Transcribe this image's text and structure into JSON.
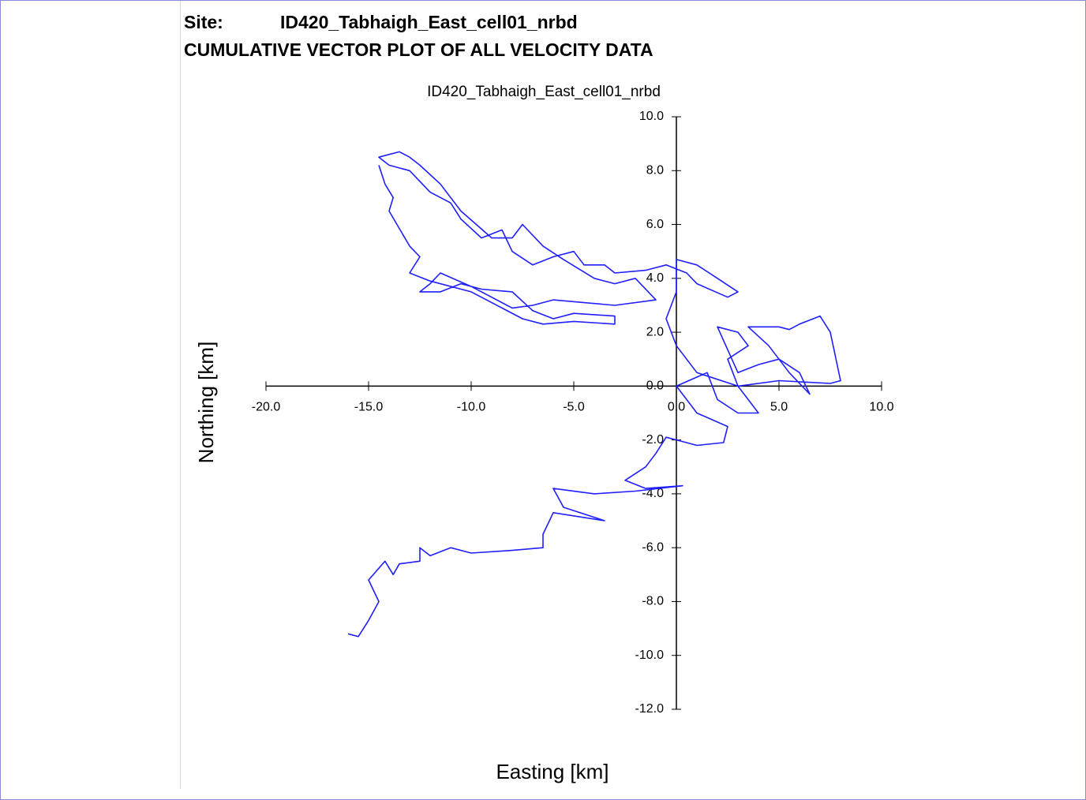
{
  "header": {
    "site_label": "Site:",
    "site_name": "ID420_Tabhaigh_East_cell01_nrbd",
    "subtitle": "CUMULATIVE VECTOR PLOT OF ALL VELOCITY DATA"
  },
  "chart_data": {
    "type": "line",
    "title": "ID420_Tabhaigh_East_cell01_nrbd",
    "x_label": "Easting [km]",
    "y_label": "Northing [km]",
    "xlim": [
      -20,
      10
    ],
    "ylim": [
      -12,
      10
    ],
    "xticks": [
      {
        "value": -20,
        "label": "-20.0"
      },
      {
        "value": -15,
        "label": "-15.0"
      },
      {
        "value": -10,
        "label": "-10.0"
      },
      {
        "value": -5,
        "label": "-5.0"
      },
      {
        "value": 0,
        "label": "0.0"
      },
      {
        "value": 5,
        "label": "5.0"
      },
      {
        "value": 10,
        "label": "10.0"
      }
    ],
    "yticks": [
      {
        "value": 10,
        "label": "10.0"
      },
      {
        "value": 8,
        "label": "8.0"
      },
      {
        "value": 6,
        "label": "6.0"
      },
      {
        "value": 4,
        "label": "4.0"
      },
      {
        "value": 2,
        "label": "2.0"
      },
      {
        "value": 0,
        "label": "0.0"
      },
      {
        "value": -2,
        "label": "-2.0"
      },
      {
        "value": -4,
        "label": "-4.0"
      },
      {
        "value": -6,
        "label": "-6.0"
      },
      {
        "value": -8,
        "label": "-8.0"
      },
      {
        "value": -10,
        "label": "-10.0"
      },
      {
        "value": -12,
        "label": "-12.0"
      }
    ],
    "x": [
      -16,
      -15.5,
      -15,
      -14.5,
      -15,
      -14.2,
      -13.8,
      -13.5,
      -12.5,
      -12.5,
      -12,
      -11,
      -10,
      -8,
      -6.5,
      -6.5,
      -6,
      -3.5,
      -5.5,
      -6,
      -4,
      -2,
      0.3,
      -1.5,
      -2.5,
      -1.5,
      -1,
      -0.5,
      0,
      1,
      2.3,
      2.5,
      1,
      0.5,
      0,
      1.5,
      2,
      3,
      4,
      3,
      2.5,
      3.5,
      3,
      2,
      3,
      4,
      5,
      6,
      6.5,
      5.5,
      4.5,
      3.5,
      5,
      5.5,
      6,
      7,
      7.5,
      8,
      7.5,
      5,
      3,
      1,
      0,
      -0.5,
      0,
      0,
      1,
      2,
      3,
      2.5,
      1,
      0.5,
      -0.5,
      -1.5,
      -3,
      -3.5,
      -4.5,
      -5,
      -6,
      -7,
      -8,
      -8.5,
      -9.5,
      -10.5,
      -11,
      -12,
      -13,
      -14,
      -14.5,
      -13.5,
      -13,
      -12.5,
      -11.5,
      -10.5,
      -9,
      -8,
      -7.5,
      -6.5,
      -5.5,
      -4,
      -3,
      -2,
      -1,
      -3,
      -6,
      -7,
      -8,
      -10,
      -11.5,
      -12,
      -12.5,
      -11.5,
      -10.5,
      -9.5,
      -8,
      -7,
      -6,
      -5,
      -3,
      -3,
      -5,
      -6.5,
      -7.5,
      -10,
      -12,
      -13,
      -12.5,
      -13,
      -14,
      -13.8,
      -14.2,
      -14.5
    ],
    "series": [
      {
        "color": "#1f1fff",
        "values": [
          -9.2,
          -9.3,
          -8.7,
          -8,
          -7.2,
          -6.5,
          -7,
          -6.6,
          -6.5,
          -6,
          -6.3,
          -6,
          -6.2,
          -6.1,
          -6,
          -5.5,
          -4.7,
          -5,
          -4.5,
          -3.8,
          -4,
          -3.9,
          -3.7,
          -3.8,
          -3.5,
          -3,
          -2.5,
          -1.9,
          -2,
          -2.2,
          -2.1,
          -1.5,
          -1,
          -0.5,
          0,
          0.5,
          -0.5,
          -1,
          -1,
          0,
          1,
          1.5,
          2,
          2.2,
          0.5,
          0.8,
          1,
          0.5,
          -0.3,
          0.5,
          1.5,
          2.2,
          2.2,
          2.1,
          2.3,
          2.6,
          2,
          0.2,
          0.1,
          0.2,
          0,
          0.5,
          1.5,
          2.5,
          3.5,
          4.7,
          4.5,
          4,
          3.5,
          3.3,
          3.8,
          4.2,
          4.5,
          4.3,
          4.2,
          4.5,
          4.5,
          5,
          4.8,
          4.5,
          5,
          5.8,
          5.5,
          6.2,
          6.8,
          7.2,
          8,
          8.2,
          8.5,
          8.7,
          8.5,
          8.2,
          7.5,
          6.5,
          5.5,
          5.5,
          6,
          5.2,
          4.7,
          4,
          3.8,
          4,
          3.2,
          3,
          3.2,
          3,
          2.9,
          3.7,
          4.2,
          3.8,
          3.5,
          3.5,
          3.8,
          3.6,
          3.5,
          2.8,
          2.5,
          2.7,
          2.6,
          2.3,
          2.4,
          2.3,
          2.5,
          3.5,
          3.9,
          4.2,
          4.8,
          5.2,
          6.5,
          7,
          7.5,
          8.2
        ]
      }
    ]
  }
}
